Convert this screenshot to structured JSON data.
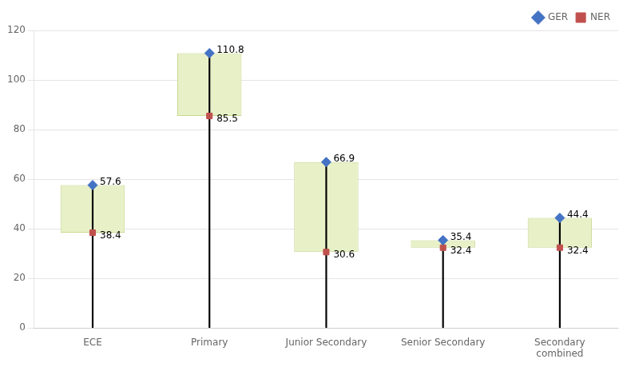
{
  "chart_data": {
    "type": "dumbbell",
    "categories": [
      "ECE",
      "Primary",
      "Junior Secondary",
      "Senior Secondary",
      "Secondary\ncombined"
    ],
    "series": [
      {
        "name": "GER",
        "color": "#4472C4",
        "marker": "diamond",
        "values": [
          57.6,
          110.8,
          66.9,
          35.4,
          44.4
        ]
      },
      {
        "name": "NER",
        "color": "#C0504D",
        "marker": "square",
        "values": [
          38.4,
          85.5,
          30.6,
          32.4,
          32.4
        ]
      }
    ],
    "color": "#E8F0C8",
    "ylim": [
      0,
      120
    ],
    "yticks": [
      0,
      20,
      40,
      60,
      80,
      100,
      120
    ],
    "grid": true,
    "legend": "upper right",
    "data_labels": true
  }
}
